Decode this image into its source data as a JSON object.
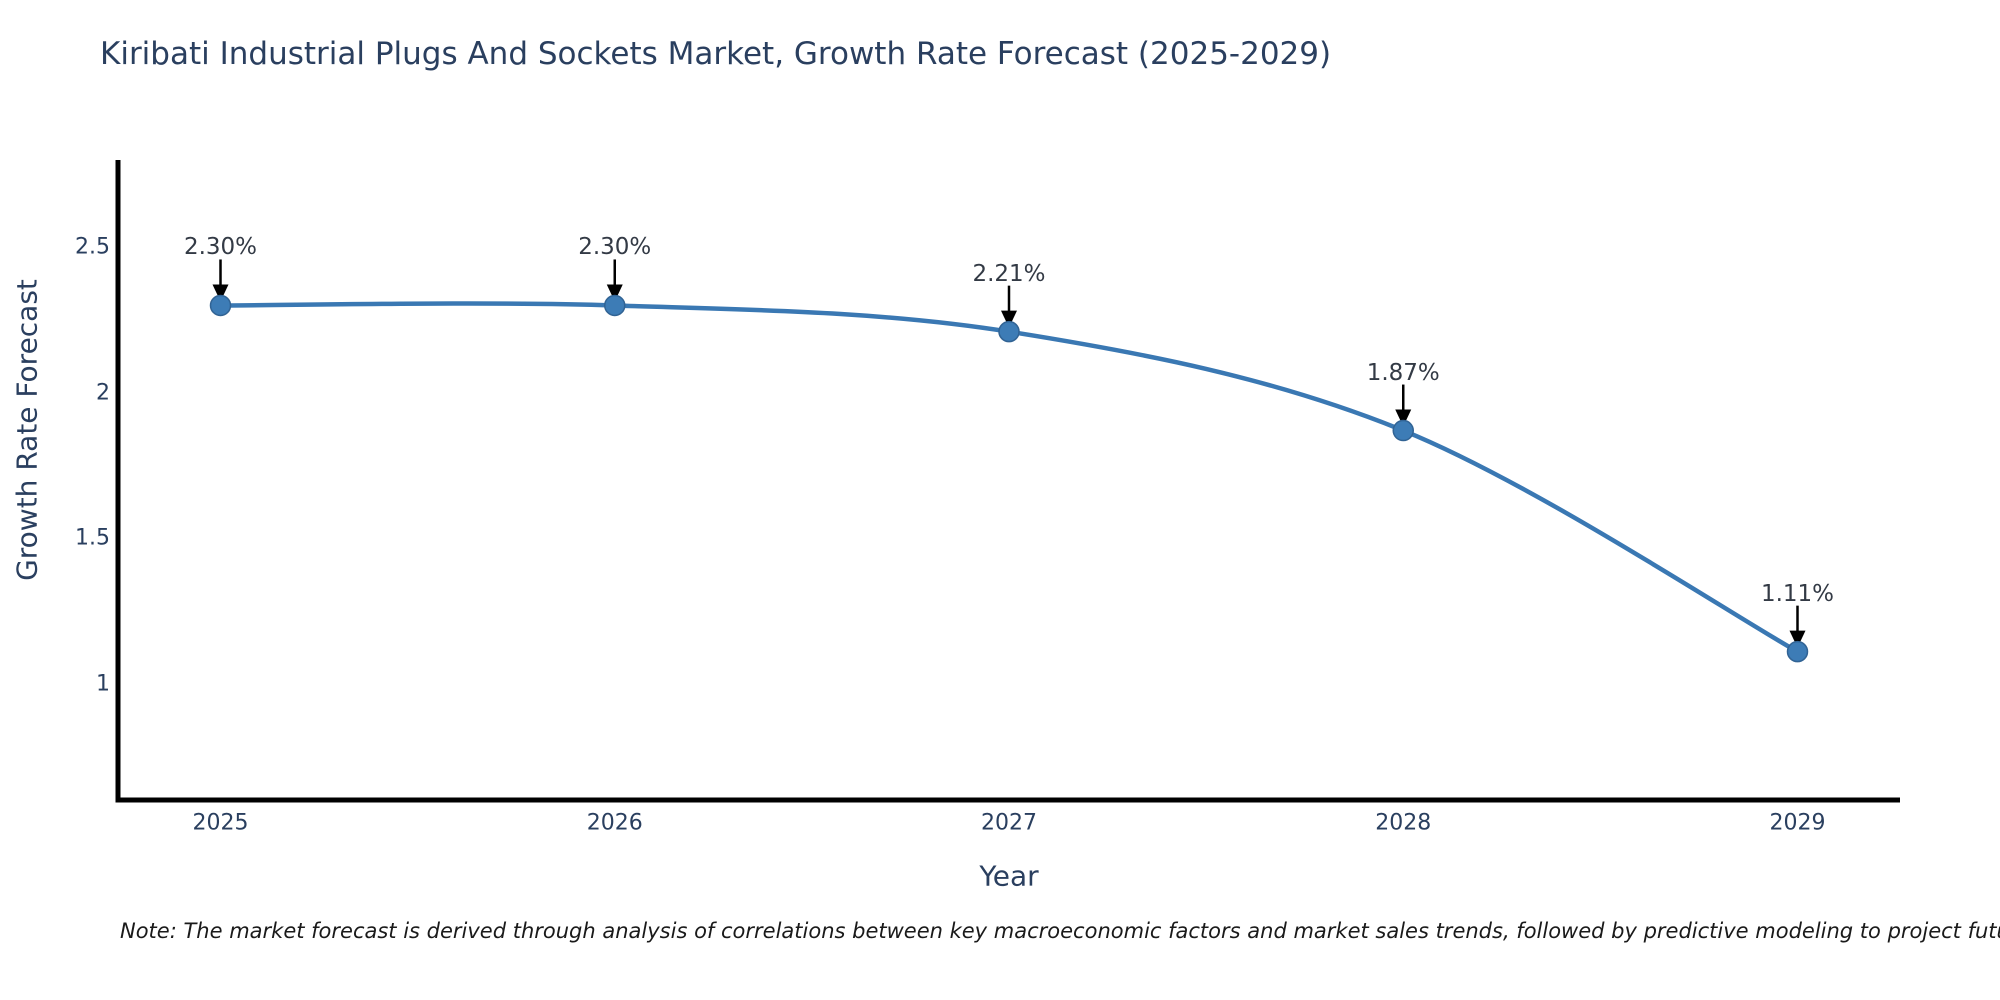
{
  "title": "Kiribati Industrial Plugs And Sockets Market, Growth Rate Forecast (2025-2029)",
  "note": "Note: The market forecast is derived through analysis of correlations between key macroeconomic factors and market sales trends, followed by predictive modeling to project future sales",
  "chart_data": {
    "type": "line",
    "title": "Kiribati Industrial Plugs And Sockets Market, Growth Rate Forecast (2025-2029)",
    "x": [
      2025,
      2026,
      2027,
      2028,
      2029
    ],
    "values": [
      2.3,
      2.3,
      2.21,
      1.87,
      1.11
    ],
    "point_labels": [
      "2.30%",
      "2.30%",
      "2.21%",
      "1.87%",
      "1.11%"
    ],
    "xtick_labels": [
      "2025",
      "2026",
      "2027",
      "2028",
      "2029"
    ],
    "yticks": [
      1,
      1.5,
      2,
      2.5
    ],
    "ytick_labels": [
      "1",
      "1.5",
      "2",
      "2.5"
    ],
    "xlabel": "Year",
    "ylabel": "Growth Rate Forecast",
    "ylim": [
      0.6,
      2.8
    ],
    "xlim": [
      2024.74,
      2029.26
    ],
    "grid": false,
    "legend": false,
    "line_shape": "spline",
    "annotations_have_arrows": true
  },
  "colors": {
    "line": "#3a78b3",
    "marker_fill": "#3d7cb6",
    "marker_edge": "#316394",
    "arrow": "#000000",
    "axis_line": "#000000",
    "title_text": "#2a3f5f",
    "axis_text": "#2a3f5f",
    "annotation_text": "#333a45",
    "note_text": "#1a1a1a",
    "background": "#ffffff"
  }
}
